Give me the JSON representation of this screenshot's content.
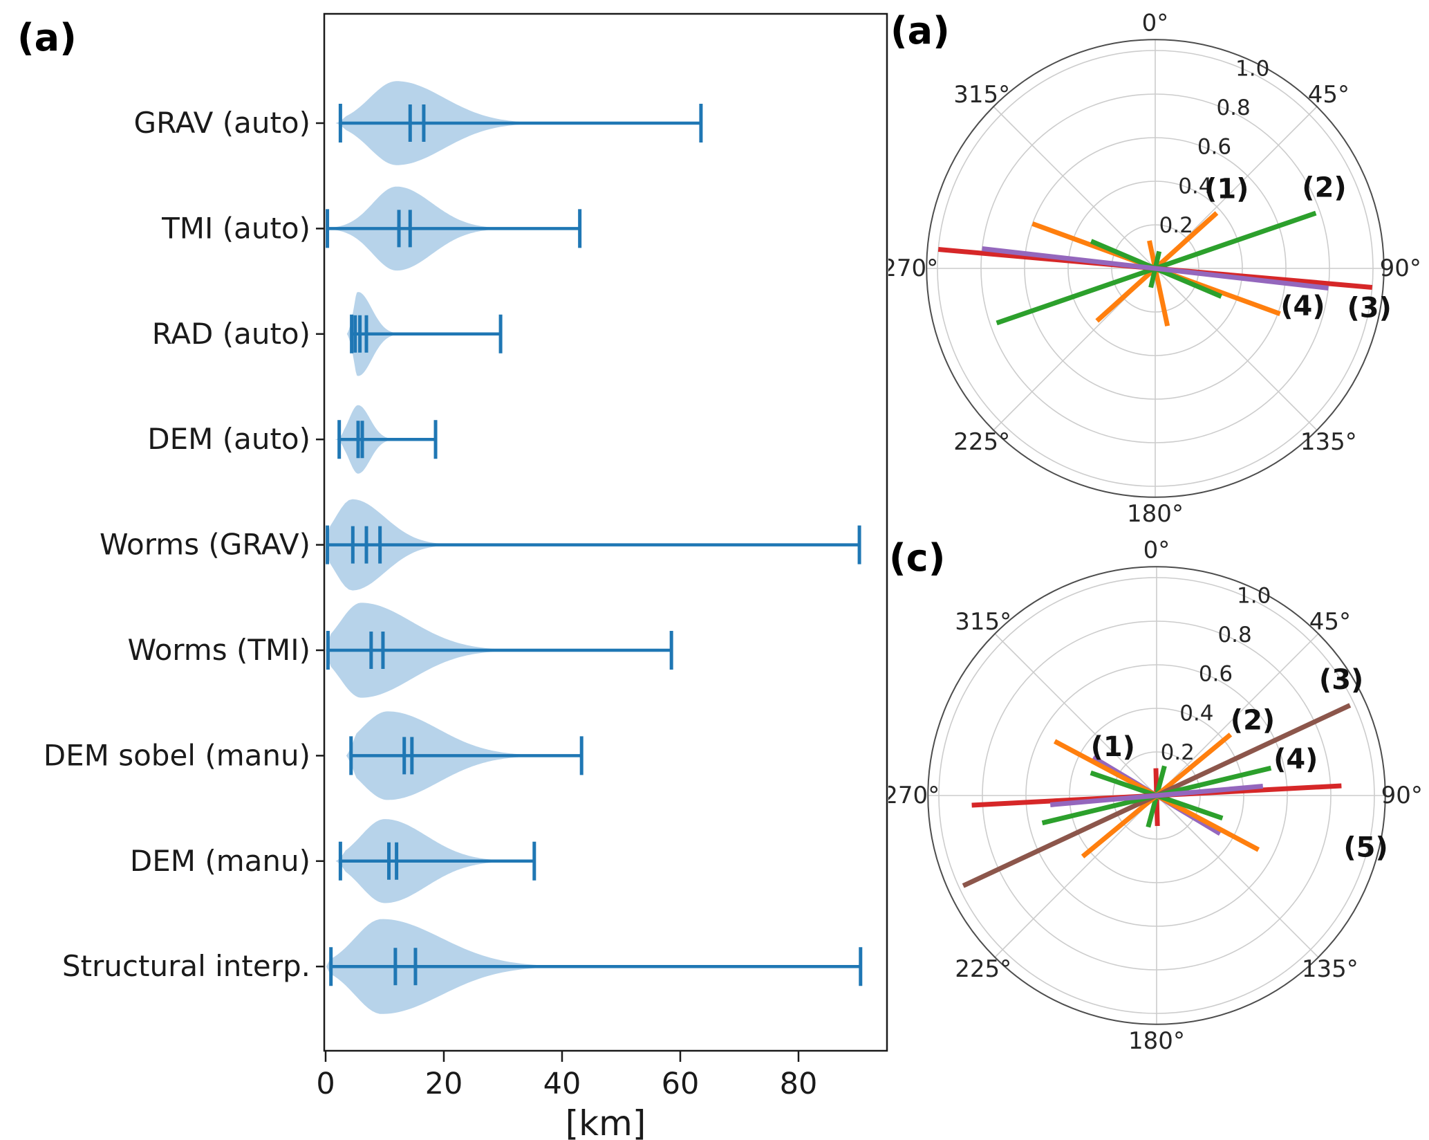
{
  "panels": {
    "violin": {
      "label": "(a)"
    },
    "polar_top": {
      "label": "(a)"
    },
    "polar_bottom": {
      "label": "(c)"
    }
  },
  "colors": {
    "blue": "#1f77b4",
    "violin_fill": "#b7d3ea",
    "orange": "#ff7f0e",
    "green": "#2ca02c",
    "red": "#d62728",
    "purple": "#9467bd",
    "brown": "#8c564b",
    "grid": "#cccccc",
    "boundary": "#4d4d4d",
    "text": "#1a1a1a"
  },
  "chart_data": [
    {
      "type": "violin",
      "orientation": "horizontal",
      "xlabel": "[km]",
      "xticks": [
        0,
        20,
        40,
        60,
        80
      ],
      "xlim": [
        0,
        95
      ],
      "grid": false,
      "rows": [
        {
          "label": "GRAV (auto)",
          "min": 2.5,
          "max": 63.5,
          "quartiles": [
            14.3,
            16.6
          ],
          "peak": 12.0,
          "sigma_left": 4.5,
          "sigma_right": 8.0,
          "amp": 0.92
        },
        {
          "label": "TMI (auto)",
          "min": 0.3,
          "max": 43.0,
          "quartiles": [
            12.4,
            14.3
          ],
          "peak": 12.0,
          "sigma_left": 4.0,
          "sigma_right": 6.0,
          "amp": 0.92
        },
        {
          "label": "RAD (auto)",
          "min": 4.4,
          "max": 29.6,
          "quartiles": [
            5.0,
            5.8,
            6.9
          ],
          "peak": 5.5,
          "sigma_left": 1.3,
          "sigma_right": 2.3,
          "amp": 0.92
        },
        {
          "label": "DEM (auto)",
          "min": 2.3,
          "max": 18.6,
          "quartiles": [
            5.5,
            6.2
          ],
          "peak": 5.5,
          "sigma_left": 1.5,
          "sigma_right": 2.0,
          "amp": 0.75
        },
        {
          "label": "Worms (GRAV)",
          "min": 0.3,
          "max": 90.3,
          "quartiles": [
            4.6,
            6.9,
            9.2
          ],
          "peak": 4.5,
          "sigma_left": 2.8,
          "sigma_right": 5.5,
          "amp": 1.0
        },
        {
          "label": "Worms (TMI)",
          "min": 0.4,
          "max": 58.5,
          "quartiles": [
            7.7,
            9.7
          ],
          "peak": 6.0,
          "sigma_left": 3.5,
          "sigma_right": 8.5,
          "amp": 1.04
        },
        {
          "label": "DEM sobel (manu)",
          "min": 4.3,
          "max": 43.3,
          "quartiles": [
            13.3,
            14.6
          ],
          "peak": 10.5,
          "sigma_left": 4.5,
          "sigma_right": 8.5,
          "amp": 0.97
        },
        {
          "label": "DEM (manu)",
          "min": 2.5,
          "max": 35.3,
          "quartiles": [
            10.7,
            12.0
          ],
          "peak": 10.0,
          "sigma_left": 4.0,
          "sigma_right": 7.0,
          "amp": 0.92
        },
        {
          "label": "Structural interp.",
          "min": 0.9,
          "max": 90.5,
          "quartiles": [
            11.8,
            15.2
          ],
          "peak": 9.5,
          "sigma_left": 4.5,
          "sigma_right": 10.0,
          "amp": 1.04
        }
      ]
    },
    {
      "type": "polar_line",
      "panel": "(a)",
      "angle_labels": [
        "0°",
        "45°",
        "90°",
        "135°",
        "180°",
        "225°",
        "270°",
        "315°"
      ],
      "r_ticks": [
        0.2,
        0.4,
        0.6,
        0.8,
        1.0
      ],
      "r_tick_labels": [
        "0.2",
        "0.4",
        "0.6",
        "0.8",
        "1.0"
      ],
      "rlabel_azimuth_deg": 26,
      "rmax_boundary": 1.05,
      "lines": [
        {
          "name": "orange-line-1",
          "color": "orange",
          "az_deg": 48,
          "r_pos": 0.38,
          "r_neg": 0.36
        },
        {
          "name": "orange-line-long",
          "color": "orange",
          "az_deg": 290,
          "r_pos": 0.6,
          "r_neg": 0.61
        },
        {
          "name": "orange-line-tiny",
          "color": "orange",
          "az_deg": 348,
          "r_pos": 0.13,
          "r_neg": 0.27
        },
        {
          "name": "green-line-2",
          "color": "green",
          "az_deg": 71,
          "r_pos": 0.78,
          "r_neg": 0.77
        },
        {
          "name": "green-line-short",
          "color": "green",
          "az_deg": 293,
          "r_pos": 0.32,
          "r_neg": 0.33
        },
        {
          "name": "green-line-tiny",
          "color": "green",
          "az_deg": 13,
          "r_pos": 0.08,
          "r_neg": 0.09
        },
        {
          "name": "red-line-3",
          "color": "red",
          "az_deg": 95,
          "r_pos": 1.0,
          "r_neg": 1.0
        },
        {
          "name": "purple-line-4",
          "color": "purple",
          "az_deg": 96.5,
          "r_pos": 0.8,
          "r_neg": 0.8
        }
      ],
      "annotations": [
        {
          "text": "(1)",
          "az_deg": 42,
          "r": 0.49
        },
        {
          "text": "(2)",
          "az_deg": 64.5,
          "r": 0.86
        },
        {
          "text": "(3)",
          "az_deg": 100.5,
          "r": 1.0
        },
        {
          "text": "(4)",
          "az_deg": 104.5,
          "r": 0.7
        }
      ]
    },
    {
      "type": "polar_line",
      "panel": "(c)",
      "angle_labels": [
        "0°",
        "45°",
        "90°",
        "135°",
        "180°",
        "225°",
        "270°",
        "315°"
      ],
      "r_ticks": [
        0.2,
        0.4,
        0.6,
        0.8,
        1.0
      ],
      "r_tick_labels": [
        "0.2",
        "0.4",
        "0.6",
        "0.8",
        "1.0"
      ],
      "rlabel_azimuth_deg": 26,
      "rmax_boundary": 1.05,
      "lines": [
        {
          "name": "red-line-vertical",
          "color": "red",
          "az_deg": 358.5,
          "r_pos": 0.125,
          "r_neg": 0.14
        },
        {
          "name": "green-line-vertical",
          "color": "green",
          "az_deg": 15,
          "r_pos": 0.14,
          "r_neg": 0.15
        },
        {
          "name": "purple-line-1",
          "color": "purple",
          "az_deg": 301,
          "r_pos": 0.34,
          "r_neg": 0.34
        },
        {
          "name": "orange-line-2",
          "color": "orange",
          "az_deg": 50.5,
          "r_pos": 0.44,
          "r_neg": 0.44
        },
        {
          "name": "orange-line-long",
          "color": "orange",
          "az_deg": 298,
          "r_pos": 0.53,
          "r_neg": 0.53
        },
        {
          "name": "brown-line-3",
          "color": "brown",
          "az_deg": 65,
          "r_pos": 0.98,
          "r_neg": 0.98
        },
        {
          "name": "green-line-4",
          "color": "green",
          "az_deg": 76.5,
          "r_pos": 0.54,
          "r_neg": 0.54
        },
        {
          "name": "green-line-mid",
          "color": "green",
          "az_deg": 289,
          "r_pos": 0.32,
          "r_neg": 0.32
        },
        {
          "name": "red-line-5",
          "color": "red",
          "az_deg": 87,
          "r_pos": 0.85,
          "r_neg": 0.85
        },
        {
          "name": "purple-line-horiz",
          "color": "purple",
          "az_deg": 85,
          "r_pos": 0.49,
          "r_neg": 0.49
        }
      ],
      "annotations": [
        {
          "text": "(1)",
          "az_deg": 318,
          "r": 0.3
        },
        {
          "text": "(2)",
          "az_deg": 52,
          "r": 0.56
        },
        {
          "text": "(3)",
          "az_deg": 58,
          "r": 1.0
        },
        {
          "text": "(4)",
          "az_deg": 75.5,
          "r": 0.66
        },
        {
          "text": "(5)",
          "az_deg": 104,
          "r": 0.99
        }
      ]
    }
  ]
}
